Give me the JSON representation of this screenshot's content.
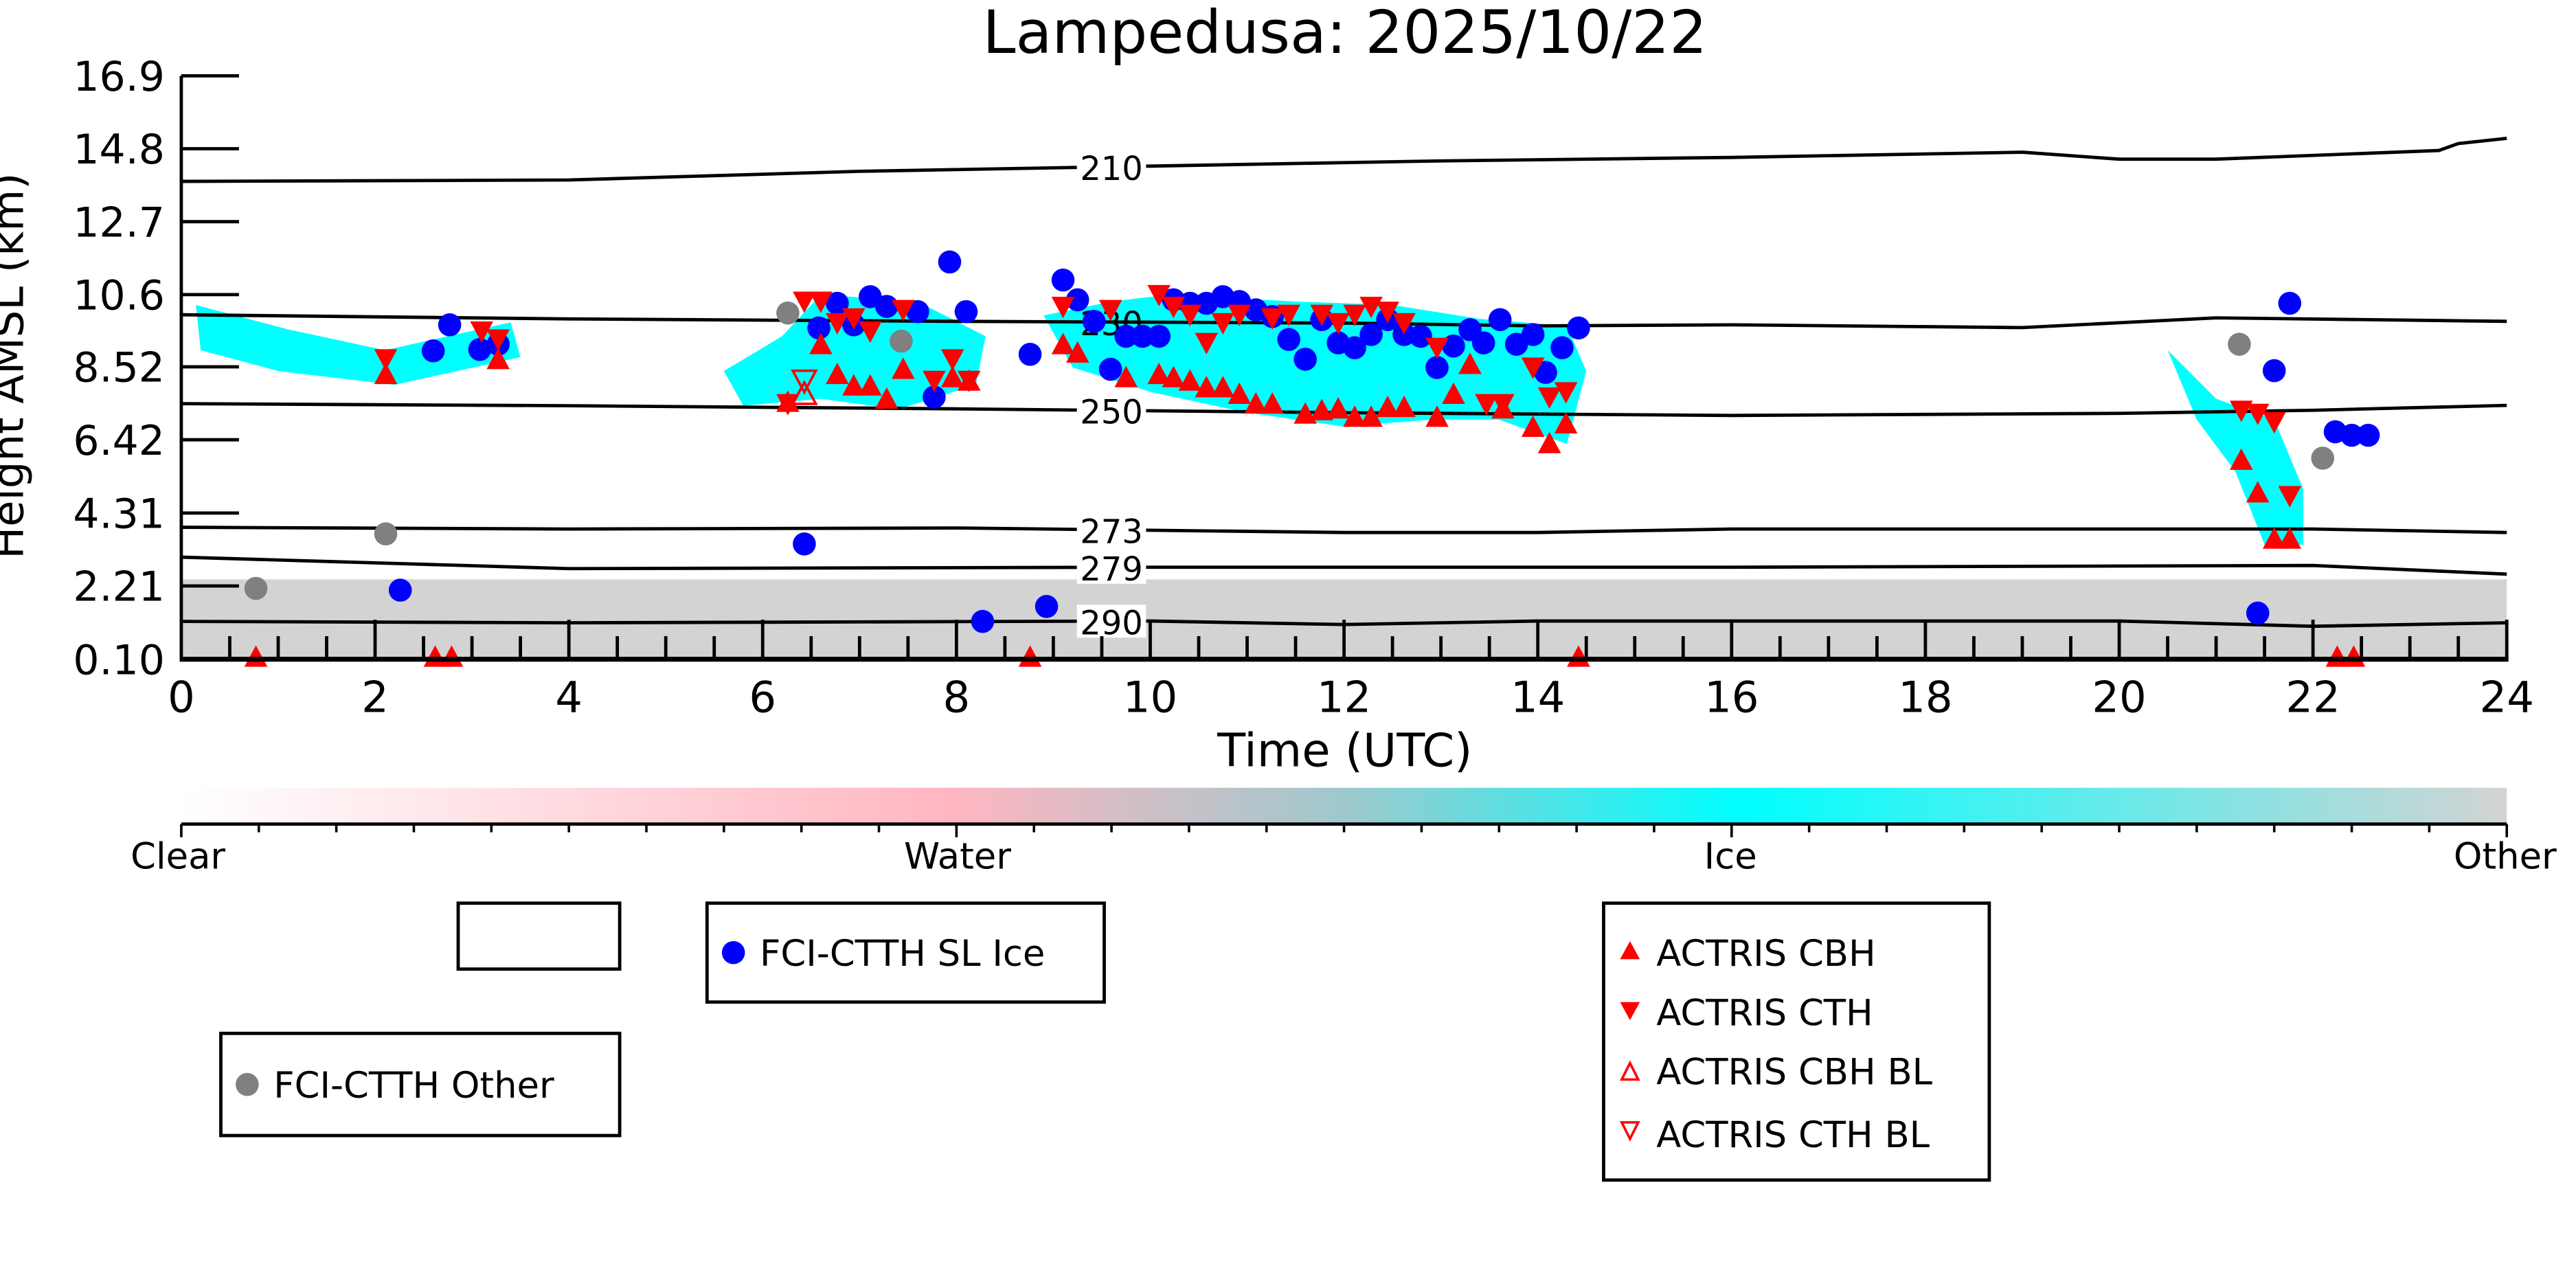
{
  "chart_data": {
    "type": "scatter",
    "title": "Lampedusa: 2025/10/22",
    "xlabel": "Time (UTC)",
    "ylabel": "Height AMSL (km)",
    "xlim": [
      0,
      24
    ],
    "ylim": [
      0.1,
      16.9
    ],
    "xticks": [
      "0",
      "2",
      "4",
      "6",
      "8",
      "10",
      "12",
      "14",
      "16",
      "18",
      "20",
      "22",
      "24"
    ],
    "yticks": [
      "0.10",
      "2.21",
      "4.31",
      "6.42",
      "8.52",
      "10.6",
      "12.7",
      "14.8",
      "16.9"
    ],
    "grid": false,
    "colorbar": {
      "labels": [
        "Clear",
        "Water",
        "Ice",
        "Other"
      ],
      "colors": [
        "#ffffff",
        "#ffb6c1",
        "#00ffff",
        "#d3d3d3"
      ]
    },
    "contours": [
      {
        "label": "210",
        "points": [
          [
            0,
            13.86
          ],
          [
            4,
            13.9
          ],
          [
            7,
            14.15
          ],
          [
            10,
            14.3
          ],
          [
            13,
            14.45
          ],
          [
            16,
            14.55
          ],
          [
            19,
            14.7
          ],
          [
            20,
            14.5
          ],
          [
            21,
            14.5
          ],
          [
            23.3,
            14.75
          ],
          [
            23.5,
            14.95
          ],
          [
            24,
            15.1
          ]
        ]
      },
      {
        "label": "230",
        "points": [
          [
            0,
            10.02
          ],
          [
            4,
            9.9
          ],
          [
            8,
            9.83
          ],
          [
            12,
            9.78
          ],
          [
            14,
            9.7
          ],
          [
            16,
            9.73
          ],
          [
            19,
            9.65
          ],
          [
            21,
            9.93
          ],
          [
            24,
            9.83
          ]
        ]
      },
      {
        "label": "250",
        "points": [
          [
            0,
            7.46
          ],
          [
            4,
            7.4
          ],
          [
            8,
            7.31
          ],
          [
            12,
            7.2
          ],
          [
            16,
            7.12
          ],
          [
            20,
            7.18
          ],
          [
            22,
            7.27
          ],
          [
            24,
            7.41
          ]
        ]
      },
      {
        "label": "273",
        "points": [
          [
            0,
            3.9
          ],
          [
            4,
            3.85
          ],
          [
            8,
            3.88
          ],
          [
            12,
            3.75
          ],
          [
            14,
            3.75
          ],
          [
            16,
            3.85
          ],
          [
            22,
            3.85
          ],
          [
            24,
            3.75
          ]
        ]
      },
      {
        "label": "279",
        "points": [
          [
            0,
            3.04
          ],
          [
            4,
            2.71
          ],
          [
            10,
            2.75
          ],
          [
            16,
            2.75
          ],
          [
            22,
            2.8
          ],
          [
            24,
            2.55
          ]
        ]
      },
      {
        "label": "290",
        "points": [
          [
            0,
            1.19
          ],
          [
            4,
            1.15
          ],
          [
            10,
            1.2
          ],
          [
            12,
            1.1
          ],
          [
            14,
            1.2
          ],
          [
            20,
            1.2
          ],
          [
            22,
            1.05
          ],
          [
            24,
            1.15
          ]
        ]
      }
    ],
    "contour_label_time": 9.6,
    "ice_regions": [
      [
        [
          0.15,
          10.3
        ],
        [
          1.1,
          9.6
        ],
        [
          2.1,
          9.0
        ],
        [
          3.4,
          9.8
        ],
        [
          3.5,
          8.8
        ],
        [
          2.2,
          8.0
        ],
        [
          1.0,
          8.4
        ],
        [
          0.2,
          9.0
        ]
      ],
      [
        [
          5.6,
          8.4
        ],
        [
          6.2,
          9.4
        ],
        [
          6.6,
          10.6
        ],
        [
          7.6,
          10.4
        ],
        [
          8.3,
          9.4
        ],
        [
          8.2,
          8.0
        ],
        [
          7.4,
          7.3
        ],
        [
          6.6,
          7.6
        ],
        [
          5.8,
          7.4
        ]
      ],
      [
        [
          8.9,
          10.0
        ],
        [
          9.6,
          10.4
        ],
        [
          10.2,
          10.6
        ],
        [
          11.5,
          10.4
        ],
        [
          12.5,
          10.3
        ],
        [
          13.4,
          9.9
        ],
        [
          14.3,
          9.7
        ],
        [
          14.5,
          8.4
        ],
        [
          14.3,
          6.3
        ],
        [
          13.6,
          7.0
        ],
        [
          12.9,
          7.0
        ],
        [
          12.0,
          6.8
        ],
        [
          11.0,
          7.2
        ],
        [
          10.0,
          7.8
        ],
        [
          9.2,
          8.5
        ]
      ],
      [
        [
          20.5,
          9.0
        ],
        [
          21.0,
          7.6
        ],
        [
          21.6,
          7.0
        ],
        [
          21.9,
          5.0
        ],
        [
          21.9,
          3.4
        ],
        [
          21.5,
          3.4
        ],
        [
          21.2,
          5.5
        ],
        [
          20.8,
          7.0
        ]
      ]
    ],
    "other_band_top": 2.4,
    "series": [
      {
        "name": "FCI-CTTH SL Ice",
        "marker": "circle",
        "color": "#0000ff",
        "points": [
          [
            2.6,
            8.98
          ],
          [
            2.77,
            9.73
          ],
          [
            3.08,
            9.02
          ],
          [
            3.27,
            9.17
          ],
          [
            2.26,
            2.09
          ],
          [
            6.43,
            3.42
          ],
          [
            6.58,
            9.64
          ],
          [
            6.77,
            10.35
          ],
          [
            6.94,
            9.73
          ],
          [
            7.11,
            10.54
          ],
          [
            7.28,
            10.26
          ],
          [
            7.6,
            10.11
          ],
          [
            7.77,
            7.65
          ],
          [
            7.93,
            11.54
          ],
          [
            8.1,
            10.11
          ],
          [
            8.27,
            1.19
          ],
          [
            8.76,
            8.88
          ],
          [
            8.93,
            1.62
          ],
          [
            9.1,
            11.02
          ],
          [
            9.25,
            10.45
          ],
          [
            9.42,
            9.83
          ],
          [
            9.59,
            8.45
          ],
          [
            9.75,
            9.4
          ],
          [
            9.92,
            9.4
          ],
          [
            10.09,
            9.4
          ],
          [
            10.24,
            10.45
          ],
          [
            10.41,
            10.35
          ],
          [
            10.58,
            10.35
          ],
          [
            10.75,
            10.54
          ],
          [
            10.92,
            10.4
          ],
          [
            11.09,
            10.16
          ],
          [
            11.26,
            9.97
          ],
          [
            11.43,
            9.31
          ],
          [
            11.6,
            8.74
          ],
          [
            11.77,
            9.88
          ],
          [
            11.94,
            9.21
          ],
          [
            12.11,
            9.07
          ],
          [
            12.28,
            9.45
          ],
          [
            12.45,
            9.88
          ],
          [
            12.62,
            9.45
          ],
          [
            12.79,
            9.4
          ],
          [
            12.96,
            8.5
          ],
          [
            13.13,
            9.12
          ],
          [
            13.3,
            9.59
          ],
          [
            13.44,
            9.21
          ],
          [
            13.61,
            9.88
          ],
          [
            13.78,
            9.17
          ],
          [
            13.95,
            9.45
          ],
          [
            14.08,
            8.36
          ],
          [
            14.25,
            9.07
          ],
          [
            14.42,
            9.64
          ],
          [
            21.43,
            1.43
          ],
          [
            21.6,
            8.41
          ],
          [
            21.76,
            10.35
          ],
          [
            22.23,
            6.65
          ],
          [
            22.4,
            6.55
          ],
          [
            22.57,
            6.55
          ]
        ]
      },
      {
        "name": "FCI-CTTH Other",
        "marker": "circle",
        "color": "#808080",
        "points": [
          [
            0.77,
            2.14
          ],
          [
            2.11,
            3.71
          ],
          [
            6.26,
            10.07
          ],
          [
            7.43,
            9.26
          ],
          [
            21.24,
            9.17
          ],
          [
            22.1,
            5.89
          ]
        ]
      },
      {
        "name": "ACTRIS CBH",
        "marker": "triangle-up",
        "color": "#ff0000",
        "points": [
          [
            2.11,
            8.26
          ],
          [
            3.27,
            8.69
          ],
          [
            6.26,
            7.46
          ],
          [
            6.6,
            9.12
          ],
          [
            6.77,
            8.26
          ],
          [
            6.94,
            7.93
          ],
          [
            7.11,
            7.93
          ],
          [
            7.28,
            7.55
          ],
          [
            7.45,
            8.41
          ],
          [
            7.96,
            8.17
          ],
          [
            8.13,
            8.07
          ],
          [
            9.1,
            9.12
          ],
          [
            9.25,
            8.88
          ],
          [
            9.75,
            8.17
          ],
          [
            10.09,
            8.26
          ],
          [
            10.24,
            8.17
          ],
          [
            10.41,
            8.07
          ],
          [
            10.58,
            7.88
          ],
          [
            10.75,
            7.88
          ],
          [
            10.92,
            7.69
          ],
          [
            11.09,
            7.41
          ],
          [
            11.26,
            7.41
          ],
          [
            11.6,
            7.12
          ],
          [
            11.77,
            7.22
          ],
          [
            11.94,
            7.27
          ],
          [
            12.11,
            7.03
          ],
          [
            12.28,
            7.03
          ],
          [
            12.45,
            7.31
          ],
          [
            12.62,
            7.31
          ],
          [
            12.96,
            7.03
          ],
          [
            13.13,
            7.69
          ],
          [
            13.3,
            8.55
          ],
          [
            13.64,
            7.27
          ],
          [
            13.95,
            6.74
          ],
          [
            14.12,
            6.27
          ],
          [
            14.29,
            6.84
          ],
          [
            21.26,
            5.79
          ],
          [
            21.43,
            4.85
          ],
          [
            21.6,
            3.52
          ],
          [
            21.76,
            3.52
          ],
          [
            0.77,
            0.12
          ],
          [
            2.62,
            0.12
          ],
          [
            2.79,
            0.12
          ],
          [
            8.76,
            0.12
          ],
          [
            14.42,
            0.12
          ],
          [
            22.25,
            0.12
          ],
          [
            22.42,
            0.12
          ]
        ]
      },
      {
        "name": "ACTRIS CTH",
        "marker": "triangle-down",
        "color": "#ff0000",
        "points": [
          [
            2.11,
            8.79
          ],
          [
            3.1,
            9.59
          ],
          [
            3.27,
            9.36
          ],
          [
            6.26,
            7.5
          ],
          [
            6.43,
            10.45
          ],
          [
            6.6,
            10.45
          ],
          [
            6.77,
            9.83
          ],
          [
            6.94,
            9.97
          ],
          [
            7.11,
            9.59
          ],
          [
            7.45,
            10.21
          ],
          [
            7.77,
            8.17
          ],
          [
            7.96,
            8.79
          ],
          [
            8.13,
            8.17
          ],
          [
            9.1,
            10.3
          ],
          [
            9.59,
            10.21
          ],
          [
            10.09,
            10.64
          ],
          [
            10.24,
            10.3
          ],
          [
            10.41,
            10.07
          ],
          [
            10.58,
            9.26
          ],
          [
            10.75,
            9.83
          ],
          [
            10.92,
            10.07
          ],
          [
            11.26,
            9.97
          ],
          [
            11.43,
            10.07
          ],
          [
            11.77,
            10.07
          ],
          [
            11.94,
            9.83
          ],
          [
            12.11,
            10.07
          ],
          [
            12.28,
            10.3
          ],
          [
            12.45,
            10.16
          ],
          [
            12.62,
            9.83
          ],
          [
            12.96,
            9.12
          ],
          [
            13.47,
            7.5
          ],
          [
            13.64,
            7.5
          ],
          [
            13.95,
            8.55
          ],
          [
            14.12,
            7.69
          ],
          [
            14.29,
            7.84
          ],
          [
            21.26,
            7.31
          ],
          [
            21.43,
            7.22
          ],
          [
            21.6,
            6.98
          ],
          [
            21.76,
            4.85
          ]
        ]
      },
      {
        "name": "ACTRIS CBH BL",
        "marker": "triangle-up-open",
        "color": "#ff0000",
        "points": [
          [
            6.43,
            7.69
          ]
        ]
      },
      {
        "name": "ACTRIS CTH BL",
        "marker": "triangle-down-open",
        "color": "#ff0000",
        "points": [
          [
            6.43,
            8.17
          ]
        ]
      }
    ]
  }
}
